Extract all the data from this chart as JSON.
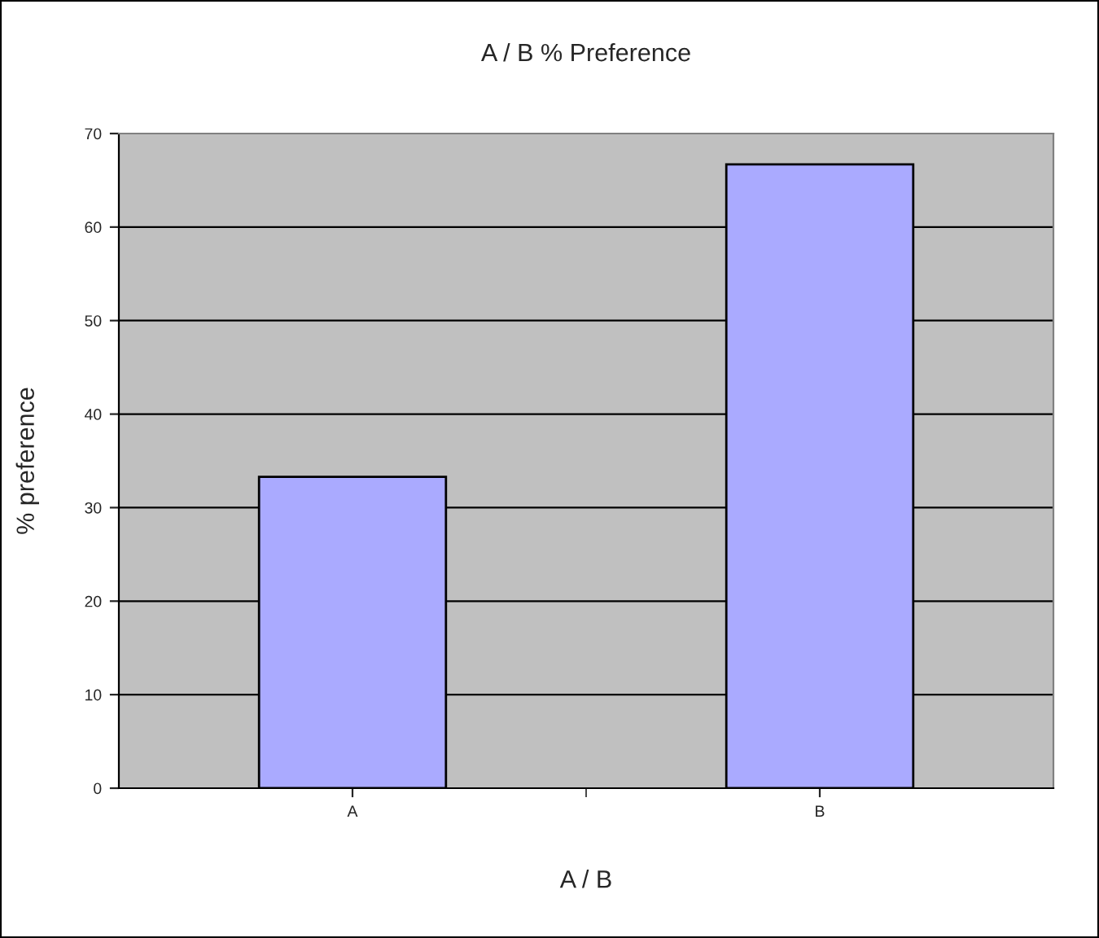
{
  "chart_data": {
    "type": "bar",
    "title": "A / B % Preference",
    "xlabel": "A / B",
    "ylabel": "% preference",
    "categories": [
      "A",
      "B"
    ],
    "values": [
      33.3,
      66.7
    ],
    "color": "#aaaaff",
    "ylim": [
      0,
      70
    ],
    "yticks": [
      0,
      10,
      20,
      30,
      40,
      50,
      60,
      70
    ],
    "grid": "y",
    "legend": false
  }
}
